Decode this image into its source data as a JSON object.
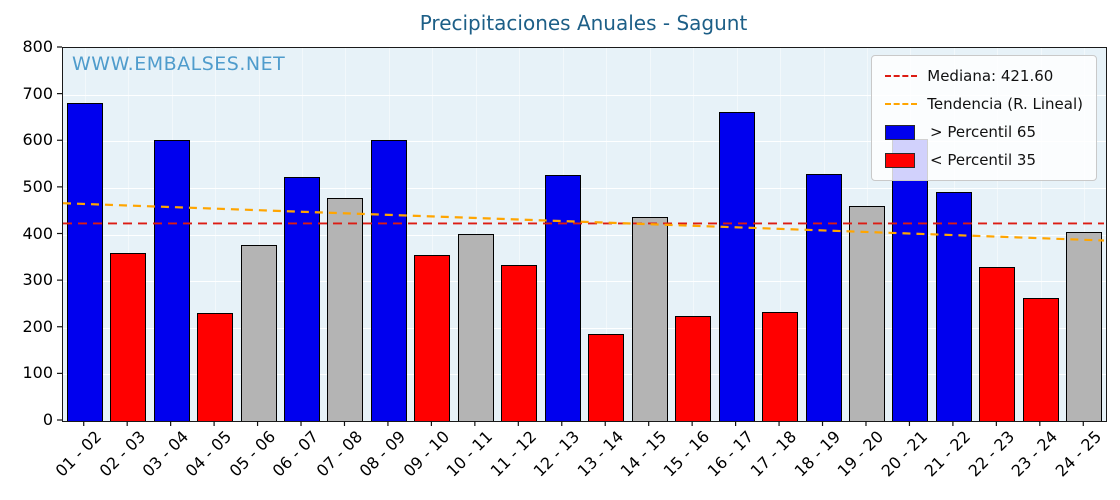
{
  "title": "Precipitaciones Anuales - Sagunt",
  "watermark": "WWW.EMBALSES.NET",
  "colors": {
    "blue": "#0000ee",
    "red": "#ff0000",
    "gray": "#b4b4b4",
    "median": "#dc1c13",
    "trend": "#ffa500",
    "title": "#1d5f87",
    "watermark": "#4f9ccc",
    "plot_bg": "#e7f2f8"
  },
  "legend": {
    "items": [
      {
        "label": "Mediana: 421.60",
        "swatch": "dashed-red-line"
      },
      {
        "label": "Tendencia (R. Lineal)",
        "swatch": "dashed-orange-line"
      },
      {
        "label": " > Percentil 65",
        "swatch": "blue-patch"
      },
      {
        "label": " < Percentil 35",
        "swatch": "red-patch"
      }
    ]
  },
  "chart_data": {
    "type": "bar",
    "title": "Precipitaciones Anuales - Sagunt",
    "xlabel": "",
    "ylabel": "",
    "ylim": [
      0,
      800
    ],
    "yticks": [
      0,
      100,
      200,
      300,
      400,
      500,
      600,
      700,
      800
    ],
    "grid": true,
    "legend_position": "upper right",
    "categories": [
      "01 - 02",
      "02 - 03",
      "03 - 04",
      "04 - 05",
      "05 - 06",
      "06 - 07",
      "07 - 08",
      "08 - 09",
      "09 - 10",
      "10 - 11",
      "11 - 12",
      "12 - 13",
      "13 - 14",
      "14 - 15",
      "15 - 16",
      "16 - 17",
      "17 - 18",
      "18 - 19",
      "19 - 20",
      "20 - 21",
      "21 - 22",
      "22 - 23",
      "23 - 24",
      "24 - 25"
    ],
    "values": [
      683,
      360,
      603,
      232,
      377,
      524,
      478,
      603,
      357,
      402,
      335,
      527,
      186,
      437,
      225,
      662,
      234,
      530,
      462,
      605,
      492,
      330,
      263,
      405
    ],
    "bar_classes": [
      "blue",
      "red",
      "blue",
      "red",
      "gray",
      "blue",
      "gray",
      "blue",
      "red",
      "gray",
      "red",
      "blue",
      "red",
      "gray",
      "red",
      "blue",
      "red",
      "blue",
      "gray",
      "blue",
      "blue",
      "red",
      "red",
      "gray"
    ],
    "median": 421.6,
    "trend_line": {
      "start_value": 465,
      "end_value": 385
    }
  }
}
